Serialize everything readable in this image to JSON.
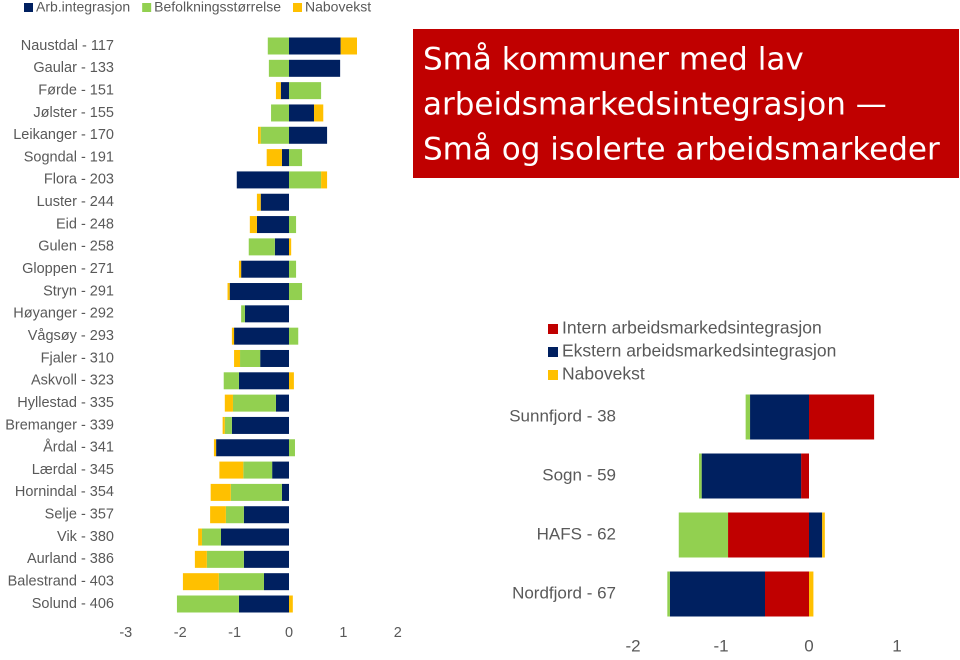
{
  "headline": [
    "Små kommuner med lav",
    "arbeidsmarkedsintegrasjon —",
    "Små og isolerte arbeidsmarkeder"
  ],
  "headline_color": "#c00000",
  "chart_data": [
    {
      "type": "bar",
      "orientation": "horizontal",
      "stacked": "diverging",
      "legend": "top-left",
      "categories": [
        "Naustdal - 117",
        "Gaular - 133",
        "Førde - 151",
        "Jølster - 155",
        "Leikanger - 170",
        "Sogndal - 191",
        "Flora - 203",
        "Luster - 244",
        "Eid - 248",
        "Gulen - 258",
        "Gloppen - 271",
        "Stryn - 291",
        "Høyanger - 292",
        "Vågsøy - 293",
        "Fjaler - 310",
        "Askvoll - 323",
        "Hyllestad - 335",
        "Bremanger - 339",
        "Årdal - 341",
        "Lærdal - 345",
        "Hornindal - 354",
        "Selje - 357",
        "Vik - 380",
        "Aurland - 386",
        "Balestrand - 403",
        "Solund - 406"
      ],
      "series": [
        {
          "name": "Arb.integrasjon",
          "color": "#002060",
          "values": [
            0.95,
            0.94,
            -0.15,
            0.46,
            0.7,
            -0.13,
            -0.96,
            -0.52,
            -0.59,
            -0.26,
            -0.88,
            -1.09,
            -0.81,
            -1.01,
            -0.53,
            -0.92,
            -0.24,
            -1.05,
            -1.34,
            -0.31,
            -0.13,
            -0.83,
            -1.25,
            -0.83,
            -0.46,
            -0.92
          ]
        },
        {
          "name": "Befolkningsstørrelse",
          "color": "#92d050",
          "values": [
            -0.39,
            -0.37,
            0.59,
            -0.33,
            -0.52,
            0.24,
            0.59,
            0,
            0.13,
            -0.48,
            0.13,
            0.24,
            -0.07,
            0.17,
            -0.37,
            -0.28,
            -0.79,
            -0.13,
            0.11,
            -0.53,
            -0.94,
            -0.33,
            -0.35,
            -0.68,
            -0.83,
            -1.14
          ]
        },
        {
          "name": "Nabovekst",
          "color": "#ffc000",
          "values": [
            0.3,
            0,
            -0.09,
            0.17,
            -0.05,
            -0.28,
            0.11,
            -0.07,
            -0.13,
            0.04,
            -0.04,
            -0.04,
            0,
            -0.04,
            -0.11,
            0.09,
            -0.15,
            -0.04,
            -0.04,
            -0.44,
            -0.37,
            -0.29,
            -0.07,
            -0.22,
            -0.66,
            0.07
          ]
        }
      ],
      "xlim": [
        -3,
        2.3
      ],
      "xticks": [
        -3,
        -2,
        -1,
        0,
        1,
        2
      ]
    },
    {
      "type": "bar",
      "orientation": "horizontal",
      "stacked": "diverging",
      "legend": "right",
      "categories": [
        "Sunnfjord - 38",
        "Sogn - 59",
        "HAFS - 62",
        "Nordfjord - 67"
      ],
      "series": [
        {
          "name": "Intern arbeidsmarkedsintegrasjon",
          "color": "#c00000",
          "values": [
            0.74,
            -0.09,
            -0.92,
            -0.5
          ]
        },
        {
          "name": "Ekstern arbeidsmarkedsintegrasjon",
          "color": "#002060",
          "values": [
            -0.67,
            -1.13,
            0.15,
            -1.08
          ]
        },
        {
          "color": "#92d050",
          "values": [
            -0.05,
            -0.03,
            -0.56,
            -0.03
          ]
        },
        {
          "name": "Nabovekst",
          "color": "#ffc000",
          "values": [
            0,
            0,
            0.03,
            0.05
          ]
        }
      ],
      "xlim": [
        -2.1,
        1.3
      ],
      "xticks": [
        -2,
        -1,
        0,
        1
      ]
    }
  ]
}
